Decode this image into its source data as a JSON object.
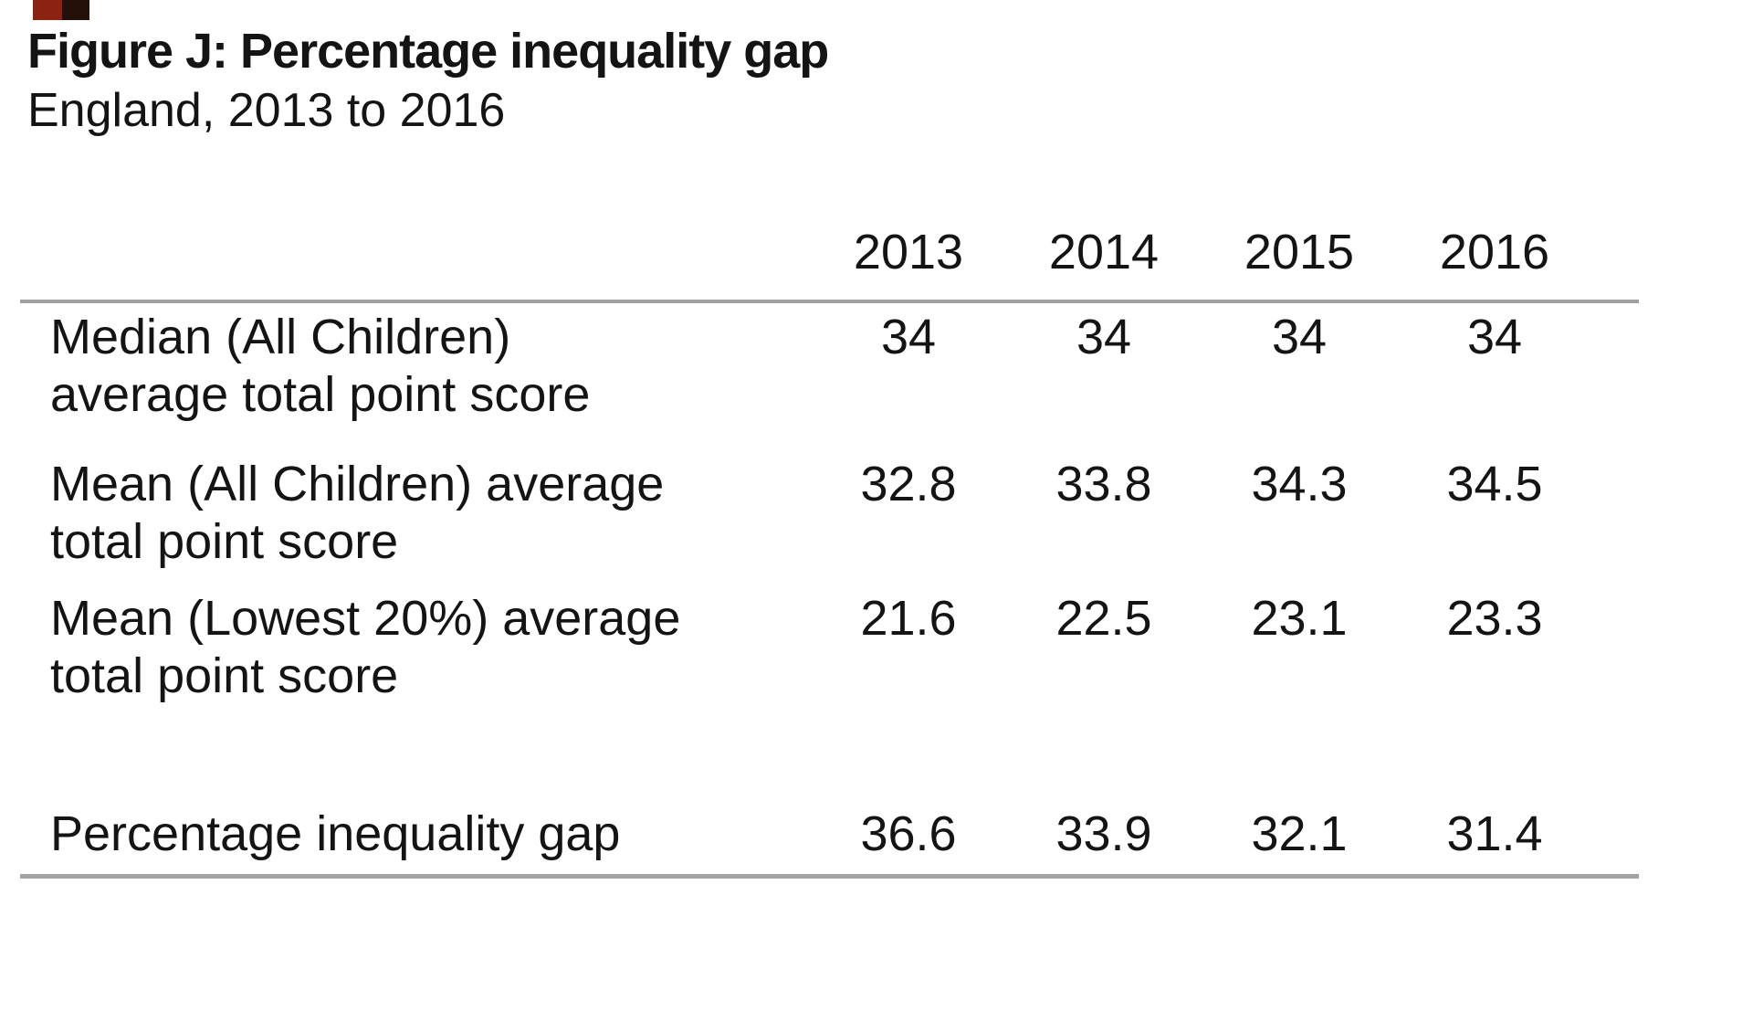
{
  "figure": {
    "title": "Figure J: Percentage inequality gap",
    "subtitle": "England, 2013 to 2016"
  },
  "chart_data": {
    "type": "table",
    "title": "Figure J: Percentage inequality gap",
    "subtitle": "England, 2013 to 2016",
    "columns": [
      "2013",
      "2014",
      "2015",
      "2016"
    ],
    "rows": [
      {
        "label": "Median (All Children) average total point score",
        "values": [
          "34",
          "34",
          "34",
          "34"
        ]
      },
      {
        "label": "Mean (All Children) average total point score",
        "values": [
          "32.8",
          "33.8",
          "34.3",
          "34.5"
        ]
      },
      {
        "label": "Mean (Lowest 20%) average total point score",
        "values": [
          "21.6",
          "22.5",
          "23.1",
          "23.3"
        ]
      },
      {
        "label": "Percentage inequality gap",
        "values": [
          "36.6",
          "33.9",
          "32.1",
          "31.4"
        ]
      }
    ],
    "layout": {
      "grid": "off",
      "rules": "horizontal rule above first data row and below last data row"
    }
  },
  "colors": {
    "background": "#ffffff",
    "text": "#141414",
    "rule": "#a3a3a3",
    "corner_mark_left": "#8c2212",
    "corner_mark_right": "#241008"
  }
}
